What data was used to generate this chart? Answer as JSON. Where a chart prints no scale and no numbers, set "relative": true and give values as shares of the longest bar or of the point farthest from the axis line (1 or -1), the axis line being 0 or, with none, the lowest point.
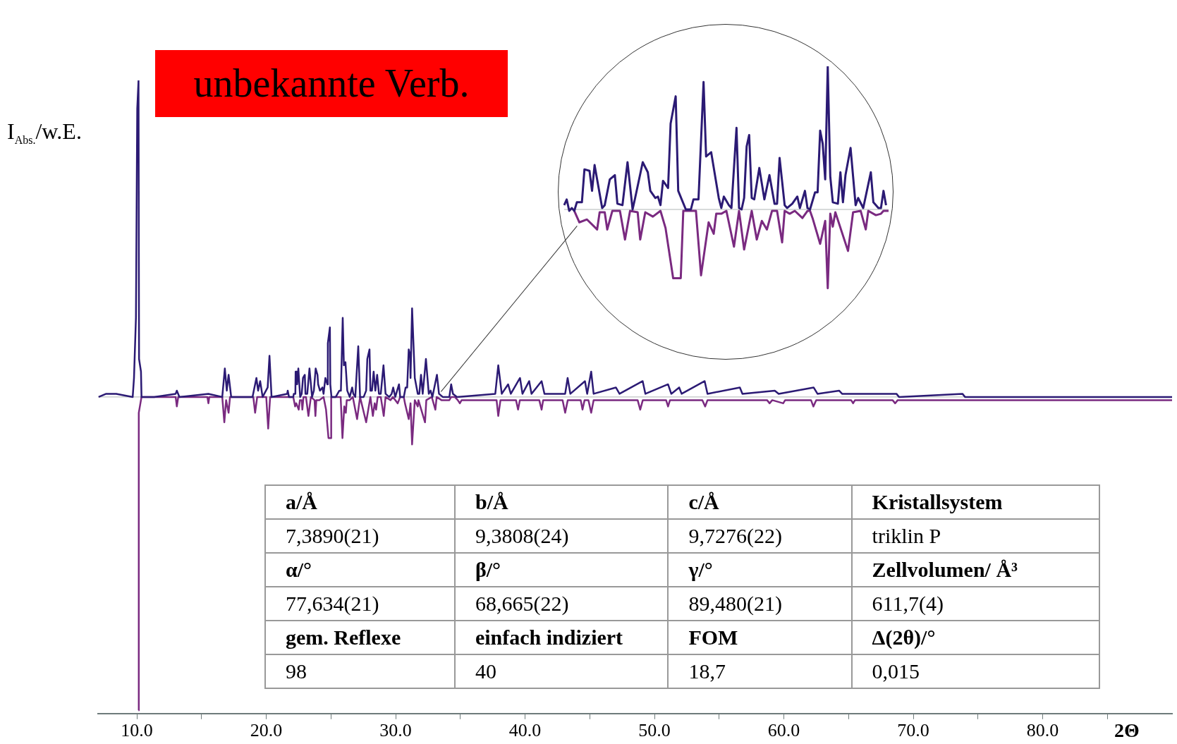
{
  "chart_data": [
    {
      "type": "line",
      "title": "unbekannte Verb.",
      "ylabel": "I$_{Abs.}$/w.E.",
      "xlabel": "2Θ",
      "relative": true,
      "xlim": [
        7,
        90
      ],
      "xticks": [
        {
          "value": 10,
          "label": "10.0"
        },
        {
          "value": 15,
          "label": null
        },
        {
          "value": 20,
          "label": "20.0"
        },
        {
          "value": 25,
          "label": null
        },
        {
          "value": 30,
          "label": "30.0"
        },
        {
          "value": 35,
          "label": null
        },
        {
          "value": 40,
          "label": "40.0"
        },
        {
          "value": 45,
          "label": null
        },
        {
          "value": 50,
          "label": "50.0"
        },
        {
          "value": 55,
          "label": null
        },
        {
          "value": 60,
          "label": "60.0"
        },
        {
          "value": 65,
          "label": null
        },
        {
          "value": 70,
          "label": "70.0"
        },
        {
          "value": 75,
          "label": null
        },
        {
          "value": 80,
          "label": "80.0"
        },
        {
          "value": 85,
          "label": null
        }
      ],
      "series": [
        {
          "color": "#2b1a74",
          "x": [
            7.05,
            7.63,
            8.41,
            9.68,
            9.78,
            9.93,
            10.03,
            10.13,
            10.17,
            10.32,
            10.36,
            11.34,
            13.0,
            13.09,
            13.29,
            15.53,
            16.6,
            16.8,
            16.95,
            17.09,
            17.29,
            18.94,
            19.24,
            19.37,
            19.53,
            19.72,
            20.11,
            20.25,
            20.41,
            21.62,
            21.66,
            21.76,
            21.9,
            22.09,
            22.13,
            22.25,
            22.27,
            22.35,
            22.39,
            22.48,
            22.62,
            22.74,
            22.84,
            22.98,
            23.03,
            23.17,
            23.34,
            23.54,
            23.68,
            23.82,
            23.96,
            24.01,
            24.15,
            24.34,
            24.43,
            24.57,
            24.72,
            24.76,
            24.92,
            24.95,
            25.04,
            25.37,
            25.65,
            25.77,
            25.91,
            26.0,
            26.12,
            26.26,
            26.45,
            26.64,
            26.73,
            26.88,
            27.11,
            27.25,
            27.53,
            27.72,
            27.81,
            27.98,
            28.05,
            28.17,
            28.3,
            28.43,
            28.57,
            28.71,
            28.85,
            29.06,
            29.22,
            29.5,
            29.69,
            29.81,
            29.97,
            30.26,
            30.35,
            30.63,
            30.77,
            30.89,
            31.01,
            31.12,
            31.15,
            31.27,
            31.48,
            31.71,
            31.83,
            31.96,
            32.09,
            32.23,
            32.34,
            32.56,
            32.7,
            32.84,
            33.19,
            33.35,
            33.64,
            34.15,
            34.29,
            34.43,
            34.74,
            37.7,
            37.93,
            38.2,
            38.69,
            38.9,
            39.61,
            39.8,
            40.32,
            40.5,
            41.28,
            41.5,
            43.1,
            43.29,
            43.5,
            44.63,
            44.8,
            45.11,
            45.3,
            47.02,
            47.3,
            49.09,
            49.3,
            51.05,
            51.3,
            51.91,
            52.1,
            53.88,
            54.1,
            56.6,
            56.8,
            59.3,
            59.6,
            62.3,
            62.6,
            64.27,
            64.5,
            68.7,
            68.9,
            73.8,
            74.0,
            90.0
          ],
          "values": [
            0,
            0.01,
            0.01,
            0,
            0.06,
            0.25,
            0.91,
            1.0,
            0.12,
            0.08,
            0,
            0,
            0.01,
            0.02,
            0,
            0.01,
            0,
            0.09,
            0.02,
            0.07,
            0,
            0,
            0.06,
            0.02,
            0.05,
            0,
            0.03,
            0.13,
            0,
            0.01,
            0.02,
            0,
            0,
            0,
            0.01,
            0.01,
            0.08,
            0.08,
            0.04,
            0.09,
            0,
            0.01,
            0.06,
            0.07,
            0.01,
            0.01,
            0.09,
            0,
            0.02,
            0.09,
            0.07,
            0.04,
            0.02,
            0.03,
            0.01,
            0.06,
            0.04,
            0.17,
            0.22,
            0.04,
            0,
            0,
            0.02,
            0.02,
            0.25,
            0.1,
            0.11,
            0.02,
            0,
            0.03,
            0.01,
            0,
            0.16,
            0,
            0,
            0.02,
            0.12,
            0.15,
            0.02,
            0.02,
            0.08,
            0.02,
            0.07,
            0.01,
            0.01,
            0.1,
            0.01,
            0,
            0.01,
            0.03,
            0,
            0.04,
            0,
            0,
            0.03,
            0.03,
            0.15,
            0.13,
            0.06,
            0.28,
            0.06,
            0.01,
            0.01,
            0.07,
            0.01,
            0.07,
            0.12,
            0.01,
            0.02,
            0,
            0.07,
            0.01,
            0,
            0,
            0.04,
            0.01,
            0,
            0.01,
            0.1,
            0.01,
            0.04,
            0.01,
            0.06,
            0.01,
            0.05,
            0.01,
            0.05,
            0.01,
            0.01,
            0.06,
            0.01,
            0.05,
            0.01,
            0.08,
            0.01,
            0.03,
            0.01,
            0.05,
            0.01,
            0.04,
            0.01,
            0.03,
            0.01,
            0.05,
            0.01,
            0.03,
            0.01,
            0.02,
            0.01,
            0.03,
            0.01,
            0.02,
            0.01,
            0.01,
            0,
            0.01,
            0,
            0
          ]
        },
        {
          "color": "#7a2a80",
          "x": [
            10.13,
            10.15,
            10.36,
            13.0,
            13.09,
            13.2,
            15.45,
            15.53,
            15.6,
            16.6,
            16.76,
            16.9,
            17.09,
            17.2,
            19.0,
            19.14,
            19.3,
            20.0,
            20.15,
            20.3,
            22.09,
            22.23,
            22.32,
            22.51,
            22.6,
            22.74,
            22.79,
            22.88,
            23.07,
            23.26,
            23.45,
            23.73,
            23.8,
            23.87,
            24.1,
            24.43,
            24.62,
            24.81,
            25.0,
            25.02,
            25.14,
            25.75,
            25.89,
            26.03,
            26.15,
            26.22,
            26.45,
            26.69,
            27.02,
            27.25,
            27.72,
            28.05,
            28.24,
            28.38,
            28.49,
            28.61,
            28.85,
            29.08,
            29.22,
            29.6,
            29.79,
            30.16,
            30.35,
            30.63,
            30.72,
            31.01,
            31.15,
            31.27,
            31.48,
            31.71,
            31.76,
            32.27,
            32.37,
            32.79,
            33.07,
            33.17,
            33.54,
            34.15,
            34.29,
            34.57,
            34.8,
            34.96,
            35.1,
            37.8,
            37.93,
            38.1,
            39.3,
            39.46,
            39.6,
            41.1,
            41.28,
            41.4,
            42.9,
            43.1,
            43.3,
            44.3,
            44.44,
            44.6,
            44.9,
            45.11,
            45.3,
            48.7,
            48.9,
            49.1,
            50.9,
            51.05,
            51.2,
            53.7,
            53.92,
            54.1,
            58.7,
            58.9,
            59.1,
            59.95,
            60.1,
            62.1,
            62.28,
            62.5,
            65.2,
            65.35,
            65.5,
            68.4,
            68.6,
            68.8,
            89.75,
            90.0
          ],
          "values": [
            -0.99,
            -0.05,
            0,
            0,
            -0.03,
            0,
            0,
            -0.02,
            0,
            0,
            -0.08,
            -0.01,
            -0.05,
            0,
            0,
            -0.05,
            0,
            0,
            -0.1,
            0,
            0,
            -0.03,
            -0.02,
            -0.04,
            -0.01,
            -0.01,
            -0.04,
            0,
            0,
            -0.06,
            0,
            -0.01,
            -0.06,
            -0.01,
            -0.01,
            0,
            -0.04,
            -0.13,
            -0.13,
            0,
            0,
            0,
            -0.13,
            -0.03,
            -0.05,
            -0.01,
            -0.01,
            0,
            -0.07,
            0,
            -0.08,
            0,
            -0.06,
            -0.02,
            -0.04,
            0,
            0,
            -0.06,
            0,
            -0.01,
            0,
            -0.02,
            0,
            0,
            -0.02,
            -0.07,
            -0.02,
            -0.15,
            -0.01,
            -0.03,
            -0.01,
            -0.08,
            -0.01,
            0,
            -0.04,
            0,
            -0.01,
            -0.01,
            0,
            0,
            -0.01,
            -0.02,
            -0.01,
            -0.01,
            -0.06,
            -0.01,
            -0.01,
            -0.04,
            -0.01,
            -0.01,
            -0.04,
            -0.01,
            -0.01,
            -0.05,
            -0.01,
            -0.01,
            -0.04,
            -0.01,
            -0.01,
            -0.05,
            -0.01,
            -0.01,
            -0.04,
            -0.01,
            -0.01,
            -0.03,
            -0.01,
            -0.01,
            -0.03,
            -0.01,
            -0.01,
            -0.02,
            -0.01,
            -0.02,
            -0.01,
            -0.01,
            -0.03,
            -0.01,
            -0.01,
            -0.02,
            -0.01,
            -0.01,
            -0.02,
            -0.01,
            -0.01,
            -0.01
          ]
        }
      ]
    },
    {
      "type": "line",
      "relative": true,
      "categories": [
        null,
        null,
        null,
        null,
        null,
        null,
        null,
        null,
        null,
        null,
        null,
        null,
        null,
        null,
        null,
        null,
        null,
        null,
        null,
        null,
        null,
        null,
        null,
        null,
        null,
        null,
        null,
        null,
        null,
        null,
        null,
        null,
        null,
        null,
        null,
        null,
        null,
        null,
        null,
        null,
        null,
        null,
        null,
        null,
        null,
        null,
        null,
        null,
        null,
        null,
        null,
        null,
        null,
        null,
        null,
        null,
        null,
        null,
        null,
        null,
        null,
        null,
        null,
        null,
        null,
        null,
        null,
        null,
        null,
        null,
        null,
        null,
        null,
        null,
        null,
        null,
        null,
        null,
        null,
        null,
        null,
        null,
        null,
        null,
        null,
        null,
        null,
        null,
        null,
        null,
        null,
        null,
        null,
        null,
        null,
        null,
        null,
        null,
        null,
        null,
        null,
        null,
        null,
        null,
        null,
        null,
        null,
        null,
        null,
        null,
        null,
        null,
        null,
        null,
        null,
        null,
        null,
        null,
        null,
        null,
        null,
        null,
        null,
        null,
        null,
        null,
        null,
        null,
        null
      ],
      "series": [
        {
          "color": "#2b1a74",
          "values": [
            0.03,
            0.07,
            -0.01,
            0.01,
            -0.01,
            0.05,
            null,
            0.05,
            0.28,
            null,
            0.27,
            0.13,
            0.31,
            null,
            null,
            0.01,
            0.03,
            null,
            0.21,
            null,
            0.24,
            0.04,
            null,
            0.03,
            null,
            0.33,
            null,
            0,
            0.08,
            null,
            null,
            0.33,
            null,
            0.26,
            0.13,
            null,
            0.08,
            0.09,
            0.03,
            0.2,
            null,
            0.15,
            0.6,
            null,
            0.79,
            0.13,
            null,
            null,
            0,
            null,
            0,
            0.07,
            null,
            0.07,
            null,
            0.89,
            0.37,
            null,
            0.4,
            null,
            null,
            0.08,
            0.01,
            0.09,
            null,
            0.03,
            0.01,
            null,
            0.57,
            0.01,
            0,
            0.08,
            0.44,
            0.52,
            0.08,
            0.07,
            null,
            0.29,
            null,
            0.07,
            null,
            0.24,
            null,
            0.04,
            0.04,
            0.36,
            null,
            0.03,
            0.01,
            null,
            0.04,
            null,
            0.09,
            0.01,
            null,
            0.13,
            0.01,
            0,
            null,
            0.12,
            0.12,
            0.55,
            0.46,
            0.21,
            1.0,
            0.23,
            0.05,
            null,
            0.04,
            0.26,
            0.05,
            0.24,
            null,
            0.43,
            null,
            0.03,
            0.08,
            null,
            0.01,
            null,
            null,
            0.26,
            0.05,
            null,
            0.01,
            0.01,
            0.13,
            0.03,
            null
          ]
        },
        {
          "color": "#7a2a80",
          "values": [
            null,
            null,
            null,
            null,
            -0.01,
            null,
            -0.09,
            null,
            null,
            -0.07,
            null,
            null,
            null,
            -0.14,
            -0.02,
            null,
            -0.02,
            -0.14,
            null,
            -0.01,
            null,
            null,
            -0.01,
            null,
            -0.21,
            null,
            -0.01,
            null,
            null,
            -0.02,
            -0.21,
            null,
            -0.02,
            null,
            null,
            -0.05,
            null,
            null,
            -0.01,
            null,
            -0.13,
            null,
            null,
            -0.48,
            null,
            null,
            -0.48,
            -0.01,
            null,
            -0.01,
            null,
            null,
            -0.01,
            null,
            -0.46,
            null,
            null,
            -0.09,
            null,
            -0.17,
            -0.03,
            null,
            -0.03,
            null,
            -0.01,
            null,
            null,
            -0.26,
            null,
            -0.01,
            null,
            -0.28,
            null,
            null,
            -0.01,
            null,
            -0.21,
            null,
            -0.08,
            null,
            -0.14,
            null,
            -0.01,
            null,
            -0.01,
            null,
            -0.23,
            -0.01,
            null,
            -0.03,
            null,
            -0.01,
            null,
            null,
            -0.06,
            null,
            -0.01,
            -0.01,
            -0.06,
            null,
            null,
            -0.24,
            null,
            -0.08,
            -0.55,
            -0.03,
            -0.12,
            -0.02,
            null,
            null,
            null,
            null,
            -0.29,
            null,
            -0.02,
            null,
            null,
            -0.01,
            null,
            -0.14,
            -0.01,
            null,
            null,
            -0.04,
            null,
            -0.03,
            -0.01,
            null,
            -0.01
          ]
        }
      ]
    },
    {
      "type": "other",
      "annotations": [
        "a/Å",
        "b/Å",
        "c/Å",
        "Kristallsystem",
        "7,3890(21)",
        "9,3808(24)",
        "9,7276(22)",
        "triklin P",
        "α/°",
        "β/°",
        "γ/°",
        "Zellvolumen/ Å³",
        "77,634(21)",
        "68,665(22)",
        "89,480(21)",
        "611,7(4)",
        "gem. Reflexe",
        "einfach indiziert",
        "FOM",
        "Δ(2θ)/°",
        "98",
        "40",
        "18,7",
        "0,015"
      ]
    }
  ]
}
